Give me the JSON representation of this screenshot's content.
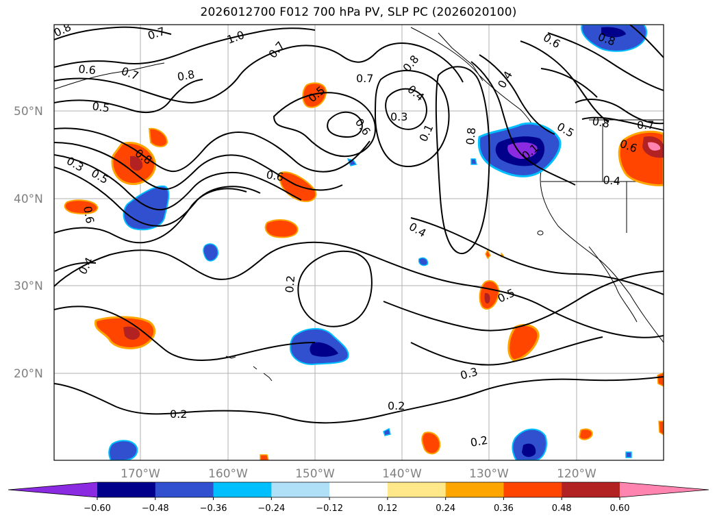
{
  "title": "2026012700 F012 700 hPa PV, SLP PC (2026020100)",
  "lat_ticks": [
    "50°N",
    "40°N",
    "30°N",
    "20°N"
  ],
  "lon_ticks": [
    "170°W",
    "160°W",
    "150°W",
    "140°W",
    "130°W",
    "120°W"
  ],
  "colorbar": {
    "colors": [
      "#8a2be2",
      "#00008b",
      "#3050d0",
      "#00bfff",
      "#b0e0f8",
      "#ffffff",
      "#ffe88a",
      "#ffa500",
      "#ff4500",
      "#b22222",
      "#ff85b0"
    ],
    "tick_labels": [
      "−0.60",
      "−0.48",
      "−0.36",
      "−0.24",
      "−0.12",
      "0.12",
      "0.24",
      "0.36",
      "0.48",
      "0.60"
    ]
  },
  "contour_labels": [
    "0.8",
    "0.7",
    "0.6",
    "0.5",
    "0.4",
    "0.3",
    "0.2",
    "0.1"
  ]
}
